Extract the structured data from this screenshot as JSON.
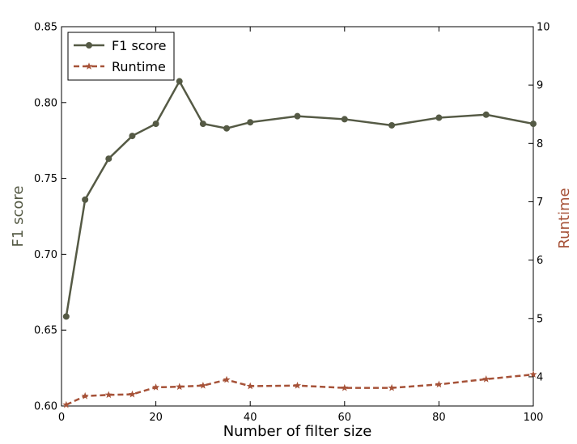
{
  "chart_data": {
    "type": "line",
    "title": "",
    "xlabel": "Number of filter size",
    "ylabel_left": "F1 score",
    "ylabel_right": "Runtime",
    "xlim": [
      0,
      100
    ],
    "ylim_left": [
      0.6,
      0.85
    ],
    "ylim_right": [
      3.5,
      10
    ],
    "x_ticks": [
      "0",
      "20",
      "40",
      "60",
      "80",
      "100"
    ],
    "y_left_ticks": [
      "0.60",
      "0.65",
      "0.70",
      "0.75",
      "0.80",
      "0.85"
    ],
    "y_right_ticks": [
      "4",
      "5",
      "6",
      "7",
      "8",
      "9",
      "10"
    ],
    "legend_position": "top-left",
    "grid": false,
    "x": [
      1,
      5,
      10,
      15,
      20,
      25,
      30,
      35,
      40,
      50,
      60,
      70,
      80,
      90,
      100
    ],
    "series": [
      {
        "name": "F1 score",
        "axis": "left",
        "color": "#555a45",
        "marker": "circle",
        "line_style": "solid",
        "values": [
          0.659,
          0.736,
          0.763,
          0.778,
          0.786,
          0.814,
          0.786,
          0.783,
          0.787,
          0.791,
          0.789,
          0.785,
          0.79,
          0.792,
          0.786
        ]
      },
      {
        "name": "Runtime",
        "axis": "right",
        "color": "#a65238",
        "marker": "star",
        "line_style": "dashed",
        "values": [
          3.52,
          3.67,
          3.69,
          3.7,
          3.82,
          3.83,
          3.85,
          3.95,
          3.84,
          3.85,
          3.81,
          3.81,
          3.87,
          3.96,
          4.04
        ]
      }
    ]
  }
}
